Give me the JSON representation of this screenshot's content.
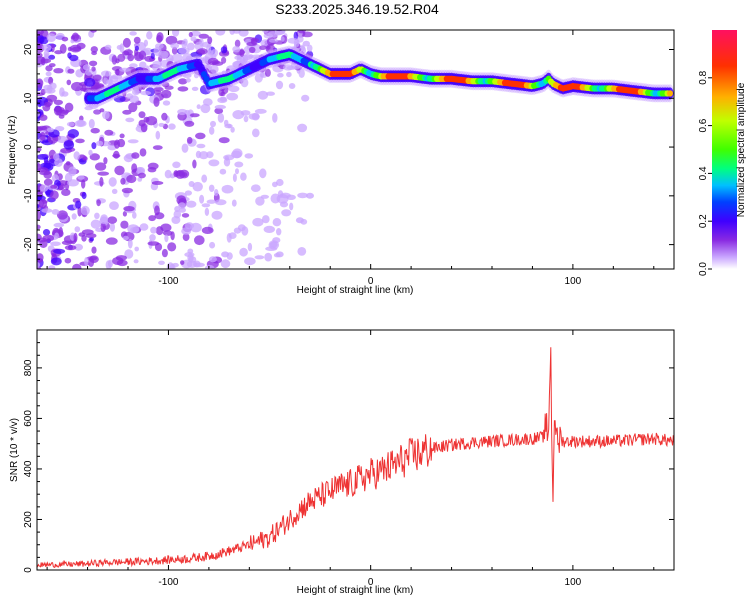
{
  "chart_data": [
    {
      "type": "heatmap",
      "title": "S233.2025.346.19.52.R04",
      "xlabel": "Height of straight line (km)",
      "ylabel": "Frequency (Hz)",
      "xlim": [
        -165,
        150
      ],
      "ylim": [
        -25,
        24
      ],
      "x_ticks": [
        -100,
        0,
        100
      ],
      "x_tick_labels": [
        "-100",
        "0",
        "100"
      ],
      "y_ticks": [
        -20,
        -10,
        0,
        10,
        20
      ],
      "y_tick_labels": [
        "-20",
        "-10",
        "0",
        "10",
        "20"
      ],
      "colorbar": {
        "label": "Normalized spectral amplitude",
        "range": [
          0,
          1
        ],
        "ticks": [
          0.0,
          0.2,
          0.4,
          0.6,
          0.8
        ],
        "tick_labels": [
          "0.0",
          "0.2",
          "0.4",
          "0.6",
          "0.8"
        ],
        "colors": [
          "#ffffff",
          "#c9a6ff",
          "#8a2be2",
          "#3f00ff",
          "#0040ff",
          "#00c0ff",
          "#00ff80",
          "#40ff00",
          "#c0ff00",
          "#ffb000",
          "#ff3000",
          "#ff1060"
        ]
      },
      "ridge": {
        "description": "dominant frequency track",
        "x": [
          -135,
          -125,
          -115,
          -105,
          -95,
          -85,
          -80,
          -70,
          -60,
          -50,
          -40,
          -35,
          -30,
          -25,
          -20,
          -15,
          -10,
          -5,
          0,
          5,
          10,
          20,
          30,
          40,
          50,
          60,
          70,
          80,
          85,
          88,
          90,
          95,
          100,
          110,
          120,
          130,
          140,
          148
        ],
        "y": [
          10,
          12,
          14,
          14,
          16,
          17,
          13,
          14,
          16,
          18,
          19,
          18,
          17,
          16,
          15,
          15,
          15,
          16,
          15,
          14.5,
          14.5,
          14.5,
          14,
          14,
          13.5,
          13.5,
          13,
          12.5,
          13,
          14,
          13,
          12,
          12.5,
          12,
          12,
          11.5,
          11,
          11
        ]
      }
    },
    {
      "type": "line",
      "xlabel": "Height of straight line (km)",
      "ylabel": "SNR (10 * v/v)",
      "xlim": [
        -165,
        150
      ],
      "ylim": [
        0,
        950
      ],
      "x_ticks": [
        -100,
        0,
        100
      ],
      "x_tick_labels": [
        "-100",
        "0",
        "100"
      ],
      "y_ticks": [
        0,
        200,
        400,
        600,
        800
      ],
      "y_tick_labels": [
        "0",
        "200",
        "400",
        "600",
        "800"
      ],
      "color": "#ee3333",
      "series": [
        {
          "name": "SNR",
          "x": [
            -165,
            -150,
            -140,
            -130,
            -120,
            -110,
            -100,
            -90,
            -80,
            -70,
            -60,
            -50,
            -45,
            -40,
            -35,
            -30,
            -25,
            -20,
            -15,
            -10,
            -5,
            0,
            5,
            10,
            15,
            20,
            25,
            30,
            40,
            50,
            60,
            70,
            80,
            85,
            88,
            89,
            90,
            91,
            92,
            93,
            95,
            100,
            110,
            120,
            130,
            140,
            150
          ],
          "y": [
            20,
            22,
            25,
            30,
            32,
            35,
            40,
            45,
            55,
            75,
            100,
            130,
            165,
            200,
            240,
            270,
            290,
            310,
            330,
            340,
            360,
            380,
            390,
            410,
            430,
            450,
            465,
            480,
            495,
            505,
            510,
            515,
            520,
            525,
            560,
            900,
            250,
            680,
            480,
            520,
            510,
            510,
            510,
            510,
            515,
            520,
            510
          ]
        }
      ]
    }
  ]
}
